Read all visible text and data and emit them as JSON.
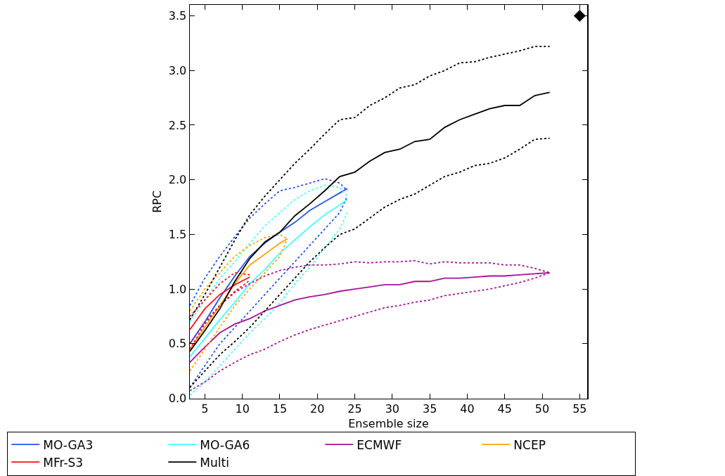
{
  "chart_data": {
    "type": "line",
    "xlabel": "Ensemble size",
    "ylabel": "RPC",
    "xlim": [
      3,
      56
    ],
    "ylim": [
      0,
      3.6
    ],
    "xticks": [
      5,
      10,
      15,
      20,
      25,
      30,
      35,
      40,
      45,
      50,
      55
    ],
    "yticks": [
      {
        "value": 0,
        "label": "0.0"
      },
      {
        "value": 0.5,
        "label": "0.5"
      },
      {
        "value": 1,
        "label": "1.0"
      },
      {
        "value": 1.5,
        "label": "1.5"
      },
      {
        "value": 2,
        "label": "2.0"
      },
      {
        "value": 2.5,
        "label": "2.5"
      },
      {
        "value": 3,
        "label": "3.0"
      },
      {
        "value": 3.5,
        "label": "3.5"
      }
    ],
    "grid": false,
    "legend": "bottom",
    "line_style": "solid",
    "series": [
      {
        "name": "MO-GA3",
        "color": "#2255ee",
        "x": [
          3,
          5,
          7,
          9,
          11,
          13,
          15,
          17,
          19,
          21,
          23,
          24
        ],
        "values": [
          0.5,
          0.7,
          0.92,
          1.12,
          1.3,
          1.42,
          1.52,
          1.61,
          1.72,
          1.8,
          1.88,
          1.92
        ]
      },
      {
        "color": "#2255ee",
        "line_style": "dotted",
        "x": [
          3,
          5,
          7,
          9,
          11,
          13,
          15,
          17,
          19,
          21,
          23,
          24
        ],
        "values": [
          0.1,
          0.3,
          0.5,
          0.65,
          0.8,
          0.95,
          1.1,
          1.25,
          1.4,
          1.55,
          1.7,
          1.85
        ]
      },
      {
        "color": "#2255ee",
        "line_style": "dotted",
        "x": [
          3,
          5,
          7,
          9,
          11,
          13,
          15,
          17,
          19,
          21,
          23,
          24
        ],
        "values": [
          0.85,
          1.1,
          1.3,
          1.48,
          1.65,
          1.78,
          1.9,
          1.93,
          1.97,
          2.01,
          1.97,
          1.9
        ]
      },
      {
        "name": "MO-GA6",
        "color": "#44ffff",
        "x": [
          3,
          5,
          7,
          9,
          11,
          13,
          15,
          17,
          19,
          21,
          23,
          24
        ],
        "values": [
          0.38,
          0.55,
          0.72,
          0.88,
          1.05,
          1.18,
          1.33,
          1.45,
          1.57,
          1.68,
          1.77,
          1.82
        ]
      },
      {
        "color": "#44ffff",
        "line_style": "dotted",
        "x": [
          3,
          5,
          7,
          9,
          11,
          13,
          15,
          17,
          19,
          21,
          23,
          24
        ],
        "values": [
          0.03,
          0.15,
          0.3,
          0.45,
          0.6,
          0.73,
          0.87,
          1.05,
          1.2,
          1.38,
          1.55,
          1.7
        ]
      },
      {
        "color": "#44ffff",
        "line_style": "dotted",
        "x": [
          3,
          5,
          7,
          9,
          11,
          13,
          15,
          17,
          19,
          21,
          23,
          24
        ],
        "values": [
          0.7,
          0.9,
          1.1,
          1.25,
          1.42,
          1.58,
          1.7,
          1.82,
          1.9,
          1.95,
          1.93,
          1.85
        ]
      },
      {
        "name": "ECMWF",
        "color": "#aa1199",
        "x": [
          3,
          5,
          7,
          9,
          11,
          13,
          15,
          17,
          19,
          21,
          23,
          25,
          27,
          29,
          31,
          33,
          35,
          37,
          39,
          41,
          43,
          45,
          47,
          49,
          51
        ],
        "values": [
          0.33,
          0.47,
          0.6,
          0.68,
          0.73,
          0.8,
          0.85,
          0.9,
          0.93,
          0.95,
          0.98,
          1.0,
          1.02,
          1.04,
          1.04,
          1.07,
          1.07,
          1.1,
          1.1,
          1.11,
          1.12,
          1.12,
          1.13,
          1.14,
          1.15
        ]
      },
      {
        "color": "#aa1199",
        "line_style": "dotted",
        "x": [
          3,
          5,
          7,
          9,
          11,
          13,
          15,
          17,
          19,
          21,
          23,
          25,
          27,
          29,
          31,
          33,
          35,
          37,
          39,
          41,
          43,
          45,
          47,
          49,
          51
        ],
        "values": [
          0.07,
          0.15,
          0.25,
          0.33,
          0.4,
          0.45,
          0.52,
          0.58,
          0.63,
          0.67,
          0.71,
          0.75,
          0.79,
          0.83,
          0.85,
          0.88,
          0.9,
          0.94,
          0.96,
          0.98,
          1.0,
          1.03,
          1.06,
          1.1,
          1.15
        ]
      },
      {
        "color": "#aa1199",
        "line_style": "dotted",
        "x": [
          3,
          5,
          7,
          9,
          11,
          13,
          15,
          17,
          19,
          21,
          23,
          25,
          27,
          29,
          31,
          33,
          35,
          37,
          39,
          41,
          43,
          45,
          47,
          49,
          51
        ],
        "values": [
          0.5,
          0.7,
          0.85,
          0.97,
          1.05,
          1.12,
          1.17,
          1.2,
          1.22,
          1.22,
          1.23,
          1.25,
          1.24,
          1.25,
          1.25,
          1.26,
          1.23,
          1.25,
          1.24,
          1.24,
          1.24,
          1.22,
          1.22,
          1.19,
          1.15
        ]
      },
      {
        "name": "NCEP",
        "color": "#ffa500",
        "x": [
          3,
          5,
          7,
          9,
          11,
          13,
          15,
          16
        ],
        "values": [
          0.45,
          0.65,
          0.85,
          1.05,
          1.22,
          1.32,
          1.42,
          1.46
        ]
      },
      {
        "color": "#ffa500",
        "line_style": "dotted",
        "x": [
          3,
          5,
          7,
          9,
          11,
          13,
          15,
          16
        ],
        "values": [
          0.25,
          0.45,
          0.65,
          0.85,
          1.0,
          1.15,
          1.3,
          1.46
        ]
      },
      {
        "color": "#ffa500",
        "line_style": "dotted",
        "x": [
          3,
          5,
          7,
          9,
          11,
          13,
          15,
          16
        ],
        "values": [
          0.8,
          1.0,
          1.15,
          1.3,
          1.4,
          1.47,
          1.5,
          1.46
        ]
      },
      {
        "name": "MFr-S3",
        "color": "#ff1111",
        "x": [
          3,
          5,
          7,
          9,
          11
        ],
        "values": [
          0.63,
          0.82,
          0.95,
          1.04,
          1.11
        ]
      },
      {
        "color": "#ff1111",
        "line_style": "dotted",
        "x": [
          3,
          5,
          7,
          9,
          11
        ],
        "values": [
          0.45,
          0.68,
          0.85,
          0.98,
          1.08
        ]
      },
      {
        "color": "#ff1111",
        "line_style": "dotted",
        "x": [
          3,
          5,
          7,
          9,
          11
        ],
        "values": [
          0.75,
          0.9,
          1.05,
          1.15,
          1.13
        ]
      },
      {
        "name": "Multi",
        "color": "#000000",
        "x": [
          3,
          5,
          7,
          9,
          11,
          13,
          15,
          17,
          19,
          21,
          23,
          25,
          27,
          29,
          31,
          33,
          35,
          37,
          39,
          41,
          43,
          45,
          47,
          49,
          51
        ],
        "values": [
          0.43,
          0.62,
          0.82,
          1.07,
          1.28,
          1.43,
          1.52,
          1.67,
          1.78,
          1.9,
          2.03,
          2.07,
          2.17,
          2.25,
          2.28,
          2.35,
          2.37,
          2.48,
          2.55,
          2.6,
          2.65,
          2.68,
          2.68,
          2.77,
          2.8
        ]
      },
      {
        "color": "#000000",
        "line_style": "dotted",
        "x": [
          3,
          5,
          7,
          9,
          11,
          13,
          15,
          17,
          19,
          21,
          23,
          25,
          27,
          29,
          31,
          33,
          35,
          37,
          39,
          41,
          43,
          45,
          47,
          49,
          51
        ],
        "values": [
          0.1,
          0.25,
          0.4,
          0.52,
          0.65,
          0.8,
          0.95,
          1.1,
          1.25,
          1.38,
          1.5,
          1.55,
          1.65,
          1.75,
          1.82,
          1.87,
          1.95,
          2.03,
          2.07,
          2.13,
          2.15,
          2.2,
          2.28,
          2.37,
          2.38
        ]
      },
      {
        "color": "#000000",
        "line_style": "dotted",
        "x": [
          3,
          5,
          7,
          9,
          11,
          13,
          15,
          17,
          19,
          21,
          23,
          25,
          27,
          29,
          31,
          33,
          35,
          37,
          39,
          41,
          43,
          45,
          47,
          49,
          51
        ],
        "values": [
          0.72,
          0.95,
          1.2,
          1.45,
          1.68,
          1.85,
          2.0,
          2.15,
          2.28,
          2.42,
          2.55,
          2.57,
          2.68,
          2.75,
          2.84,
          2.87,
          2.95,
          3.0,
          3.07,
          3.08,
          3.12,
          3.15,
          3.18,
          3.22,
          3.22
        ]
      },
      {
        "type": "scatter",
        "marker": "diamond",
        "color": "#000000",
        "x": [
          55
        ],
        "values": [
          3.5
        ]
      }
    ]
  }
}
